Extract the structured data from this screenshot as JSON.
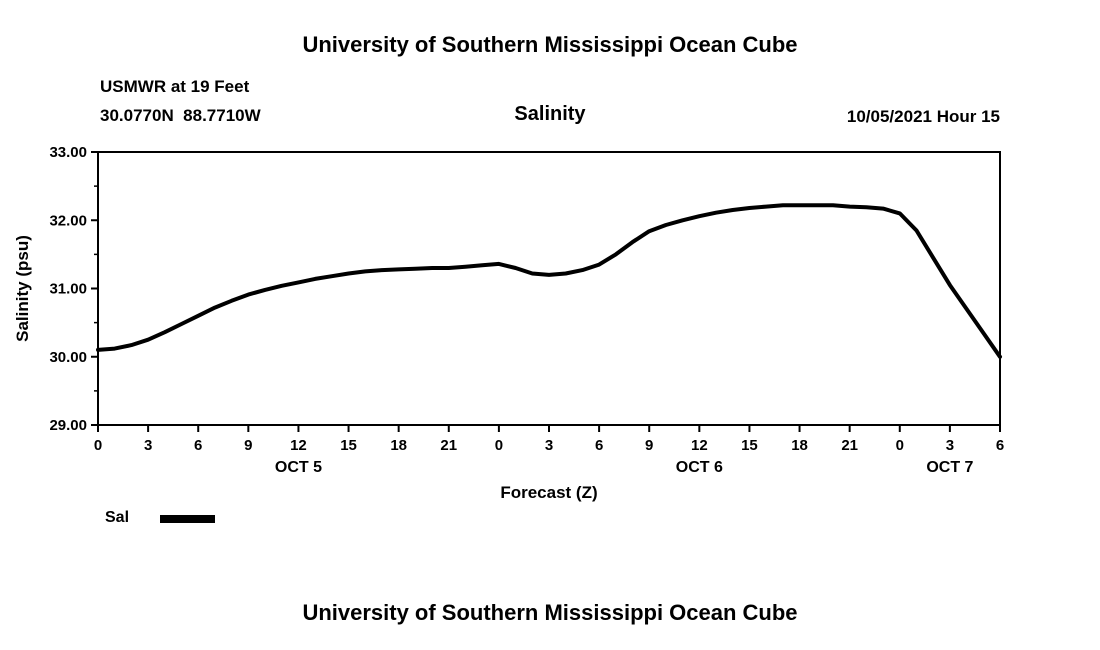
{
  "page": {
    "top_title": "University of Southern Mississippi Ocean Cube",
    "bottom_title": "University of Southern Mississippi Ocean Cube",
    "station": "USMWR at 19 Feet",
    "coordinates": "30.0770N  88.7710W",
    "chart_title": "Salinity",
    "timestamp": "10/05/2021 Hour 15"
  },
  "legend": {
    "label": "Sal",
    "color": "#000000"
  },
  "chart_data": {
    "type": "line",
    "title": "Salinity",
    "xlabel": "Forecast (Z)",
    "ylabel": "Salinity (psu)",
    "ylim": [
      29.0,
      33.0
    ],
    "xlim_hours": [
      0,
      54
    ],
    "grid": false,
    "legend_position": "bottom-left",
    "y_ticks": [
      {
        "value": 29,
        "label": "29.00"
      },
      {
        "value": 30,
        "label": "30.00"
      },
      {
        "value": 31,
        "label": "31.00"
      },
      {
        "value": 32,
        "label": "32.00"
      },
      {
        "value": 33,
        "label": "33.00"
      }
    ],
    "y_minor_ticks": [
      29.5,
      30.5,
      31.5,
      32.5
    ],
    "x_ticks": [
      {
        "hour": 0,
        "label": "0"
      },
      {
        "hour": 3,
        "label": "3"
      },
      {
        "hour": 6,
        "label": "6"
      },
      {
        "hour": 9,
        "label": "9"
      },
      {
        "hour": 12,
        "label": "12"
      },
      {
        "hour": 15,
        "label": "15"
      },
      {
        "hour": 18,
        "label": "18"
      },
      {
        "hour": 21,
        "label": "21"
      },
      {
        "hour": 24,
        "label": "0"
      },
      {
        "hour": 27,
        "label": "3"
      },
      {
        "hour": 30,
        "label": "6"
      },
      {
        "hour": 33,
        "label": "9"
      },
      {
        "hour": 36,
        "label": "12"
      },
      {
        "hour": 39,
        "label": "15"
      },
      {
        "hour": 42,
        "label": "18"
      },
      {
        "hour": 45,
        "label": "21"
      },
      {
        "hour": 48,
        "label": "0"
      },
      {
        "hour": 51,
        "label": "3"
      },
      {
        "hour": 54,
        "label": "6"
      }
    ],
    "date_labels": [
      {
        "hour": 12,
        "label": "OCT 5"
      },
      {
        "hour": 36,
        "label": "OCT 6"
      },
      {
        "hour": 51,
        "label": "OCT 7"
      }
    ],
    "series": [
      {
        "name": "Sal",
        "color": "#000000",
        "x": [
          0,
          1,
          2,
          3,
          4,
          5,
          6,
          7,
          8,
          9,
          10,
          11,
          12,
          13,
          14,
          15,
          16,
          17,
          18,
          19,
          20,
          21,
          22,
          23,
          24,
          25,
          26,
          27,
          28,
          29,
          30,
          31,
          32,
          33,
          34,
          35,
          36,
          37,
          38,
          39,
          40,
          41,
          42,
          43,
          44,
          45,
          46,
          47,
          48,
          49,
          50,
          51,
          52,
          53,
          54
        ],
        "y": [
          30.1,
          30.12,
          30.17,
          30.25,
          30.36,
          30.48,
          30.6,
          30.72,
          30.82,
          30.91,
          30.98,
          31.04,
          31.09,
          31.14,
          31.18,
          31.22,
          31.25,
          31.27,
          31.28,
          31.29,
          31.3,
          31.3,
          31.32,
          31.34,
          31.36,
          31.3,
          31.22,
          31.2,
          31.22,
          31.27,
          31.35,
          31.5,
          31.68,
          31.84,
          31.93,
          32.0,
          32.06,
          32.11,
          32.15,
          32.18,
          32.2,
          32.22,
          32.22,
          32.22,
          32.22,
          32.2,
          32.19,
          32.17,
          32.1,
          31.85,
          31.45,
          31.05,
          30.7,
          30.35,
          30.0
        ]
      }
    ]
  }
}
